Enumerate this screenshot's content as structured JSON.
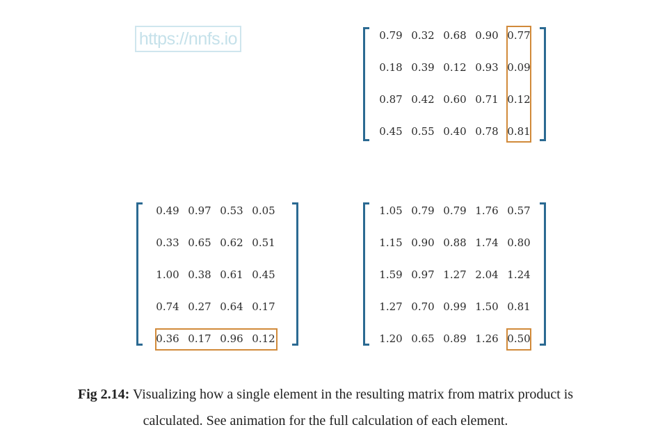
{
  "watermark": "https://nnfs.io",
  "matrices": {
    "top": {
      "rows": [
        [
          "0.79",
          "0.32",
          "0.68",
          "0.90",
          "0.77"
        ],
        [
          "0.18",
          "0.39",
          "0.12",
          "0.93",
          "0.09"
        ],
        [
          "0.87",
          "0.42",
          "0.60",
          "0.71",
          "0.12"
        ],
        [
          "0.45",
          "0.55",
          "0.40",
          "0.78",
          "0.81"
        ]
      ]
    },
    "left": {
      "rows": [
        [
          "0.49",
          "0.97",
          "0.53",
          "0.05"
        ],
        [
          "0.33",
          "0.65",
          "0.62",
          "0.51"
        ],
        [
          "1.00",
          "0.38",
          "0.61",
          "0.45"
        ],
        [
          "0.74",
          "0.27",
          "0.64",
          "0.17"
        ],
        [
          "0.36",
          "0.17",
          "0.96",
          "0.12"
        ]
      ]
    },
    "result": {
      "rows": [
        [
          "1.05",
          "0.79",
          "0.79",
          "1.76",
          "0.57"
        ],
        [
          "1.15",
          "0.90",
          "0.88",
          "1.74",
          "0.80"
        ],
        [
          "1.59",
          "0.97",
          "1.27",
          "2.04",
          "1.24"
        ],
        [
          "1.27",
          "0.70",
          "0.99",
          "1.50",
          "0.81"
        ],
        [
          "1.20",
          "0.65",
          "0.89",
          "1.26",
          "0.50"
        ]
      ]
    }
  },
  "highlight_color": "#d18a3a",
  "bracket_color": "#2b6a92",
  "caption": {
    "label": "Fig 2.14:",
    "line1": " Visualizing how a single element in the resulting matrix from matrix product is",
    "line2": "calculated. See animation for the full calculation of each element."
  }
}
